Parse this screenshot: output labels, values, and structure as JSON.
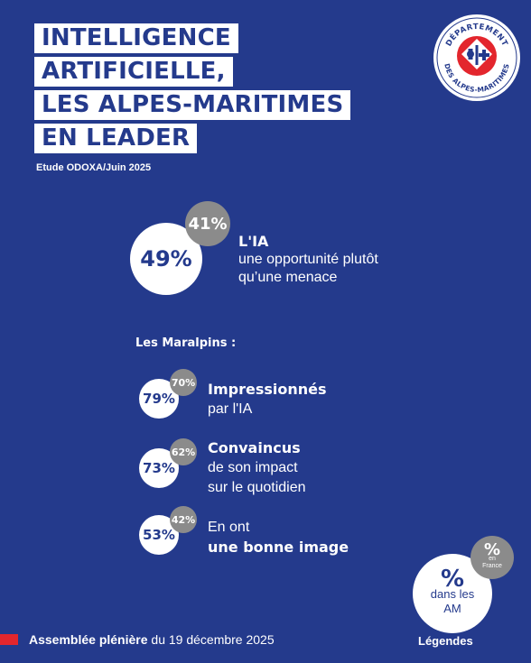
{
  "title_lines": [
    "INTELLIGENCE",
    "ARTIFICIELLE,",
    "LES ALPES-MARITIMES",
    "EN LEADER"
  ],
  "source": "Etude ODOXA/Juin 2025",
  "logo": {
    "top_text": "DÉPARTEMENT",
    "bottom_text": "DES ALPES-MARITIMES",
    "colors": {
      "ring": "#243a8c",
      "cross": "#e3262d",
      "fill": "#ffffff"
    }
  },
  "headline": {
    "am_pct": "49%",
    "fr_pct": "41%",
    "line1": "L'IA",
    "line2": "une opportunité plutôt",
    "line3": "qu’une menace"
  },
  "subtitle": "Les Maralpins :",
  "items": [
    {
      "am_pct": "79%",
      "fr_pct": "70%",
      "line1": "Impressionnés",
      "line1_bold": true,
      "line2": "par l'IA",
      "line2_bold": false
    },
    {
      "am_pct": "73%",
      "fr_pct": "62%",
      "line1": "Convaincus",
      "line1_bold": true,
      "line2": "de son impact",
      "line2_bold": false,
      "line3": "sur le quotidien"
    },
    {
      "am_pct": "53%",
      "fr_pct": "42%",
      "line1": "En ont",
      "line1_bold": false,
      "line2": "une bonne image",
      "line2_bold": true
    }
  ],
  "legend": {
    "main_pct": "%",
    "main_label_1": "dans les",
    "main_label_2": "AM",
    "fr_pct": "%",
    "fr_label_1": "en",
    "fr_label_2": "France",
    "caption": "Légendes"
  },
  "footer": {
    "bold": "Assemblée plénière",
    "rest": " du 19 décembre 2025"
  },
  "colors": {
    "background": "#243a8c",
    "accent_red": "#e3262d",
    "grey": "#8b8b8b"
  }
}
